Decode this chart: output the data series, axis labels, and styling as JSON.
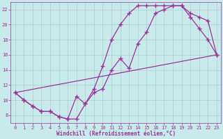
{
  "xlabel": "Windchill (Refroidissement éolien,°C)",
  "bg_color": "#c8eaea",
  "line_color": "#993399",
  "grid_color": "#aacccc",
  "xmin": -0.5,
  "xmax": 23.5,
  "ymin": 7,
  "ymax": 23,
  "yticks": [
    8,
    10,
    12,
    14,
    16,
    18,
    20,
    22
  ],
  "xticks": [
    0,
    1,
    2,
    3,
    4,
    5,
    6,
    7,
    8,
    9,
    10,
    11,
    12,
    13,
    14,
    15,
    16,
    17,
    18,
    19,
    20,
    21,
    22,
    23
  ],
  "line1_x": [
    0,
    1,
    2,
    3,
    4,
    5,
    6,
    7,
    8,
    9,
    10,
    11,
    12,
    13,
    14,
    15,
    16,
    17,
    18,
    19,
    20,
    21,
    22,
    23
  ],
  "line1_y": [
    11,
    10,
    9.2,
    8.5,
    8.5,
    7.8,
    7.5,
    7.5,
    9.5,
    11,
    11.5,
    14,
    15.5,
    14.2,
    17.5,
    19,
    21.5,
    22,
    22.5,
    22.5,
    21,
    19.5,
    18,
    16
  ],
  "line2_x": [
    0,
    1,
    2,
    3,
    4,
    5,
    6,
    7,
    8,
    9,
    10,
    11,
    12,
    13,
    14,
    15,
    16,
    17,
    18,
    19,
    20,
    21,
    22,
    23
  ],
  "line2_y": [
    11,
    10,
    9.2,
    8.5,
    8.5,
    7.8,
    7.5,
    10.5,
    9.5,
    11.5,
    14.5,
    18,
    20,
    21.5,
    22.5,
    22.5,
    22.5,
    22.5,
    22.5,
    22.5,
    21.5,
    21,
    20.5,
    16
  ],
  "line3_x": [
    0,
    23
  ],
  "line3_y": [
    11,
    16
  ],
  "marker": "+",
  "marker_size": 4,
  "linewidth": 0.9
}
